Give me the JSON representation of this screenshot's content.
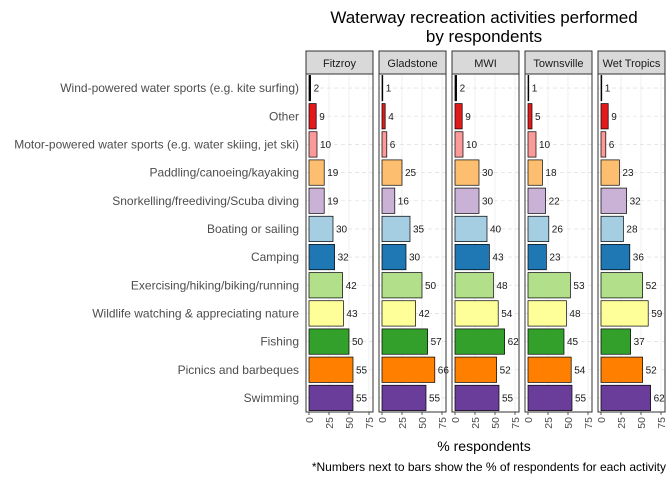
{
  "chart_data": {
    "type": "bar",
    "orientation": "horizontal",
    "title_line1": "Waterway recreation activities performed",
    "title_line2": "by respondents",
    "xlabel": "% respondents",
    "caption": "*Numbers next to bars show the % of respondents for each activity",
    "xlim": [
      0,
      75
    ],
    "xticks": [
      "0",
      "25",
      "50",
      "75"
    ],
    "grid": true,
    "categories": [
      "Wind-powered water sports (e.g. kite surfing)",
      "Other",
      "Motor-powered water sports (e.g. water skiing, jet ski)",
      "Paddling/canoeing/kayaking",
      "Snorkelling/freediving/Scuba diving",
      "Boating or sailing",
      "Camping",
      "Exercising/hiking/biking/running",
      "Wildlife watching & appreciating nature",
      "Fishing",
      "Picnics and barbeques",
      "Swimming"
    ],
    "category_colors": [
      "#000000",
      "#e31a1c",
      "#fb9a99",
      "#fdbf6f",
      "#cab2d6",
      "#a6cee3",
      "#1f78b4",
      "#b2df8a",
      "#ffff99",
      "#33a02c",
      "#ff7f00",
      "#6a3d9a"
    ],
    "panels": [
      {
        "name": "Fitzroy",
        "values": [
          2,
          9,
          10,
          19,
          19,
          30,
          32,
          42,
          43,
          50,
          55,
          55
        ]
      },
      {
        "name": "Gladstone",
        "values": [
          1,
          4,
          6,
          25,
          16,
          35,
          30,
          50,
          42,
          57,
          66,
          55
        ]
      },
      {
        "name": "MWI",
        "values": [
          2,
          9,
          10,
          30,
          30,
          40,
          43,
          48,
          54,
          62,
          52,
          55
        ]
      },
      {
        "name": "Townsville",
        "values": [
          1,
          5,
          10,
          18,
          22,
          26,
          23,
          53,
          48,
          45,
          54,
          55
        ]
      },
      {
        "name": "Wet Tropics",
        "values": [
          1,
          9,
          6,
          23,
          32,
          28,
          36,
          52,
          59,
          37,
          52,
          62
        ]
      }
    ]
  }
}
